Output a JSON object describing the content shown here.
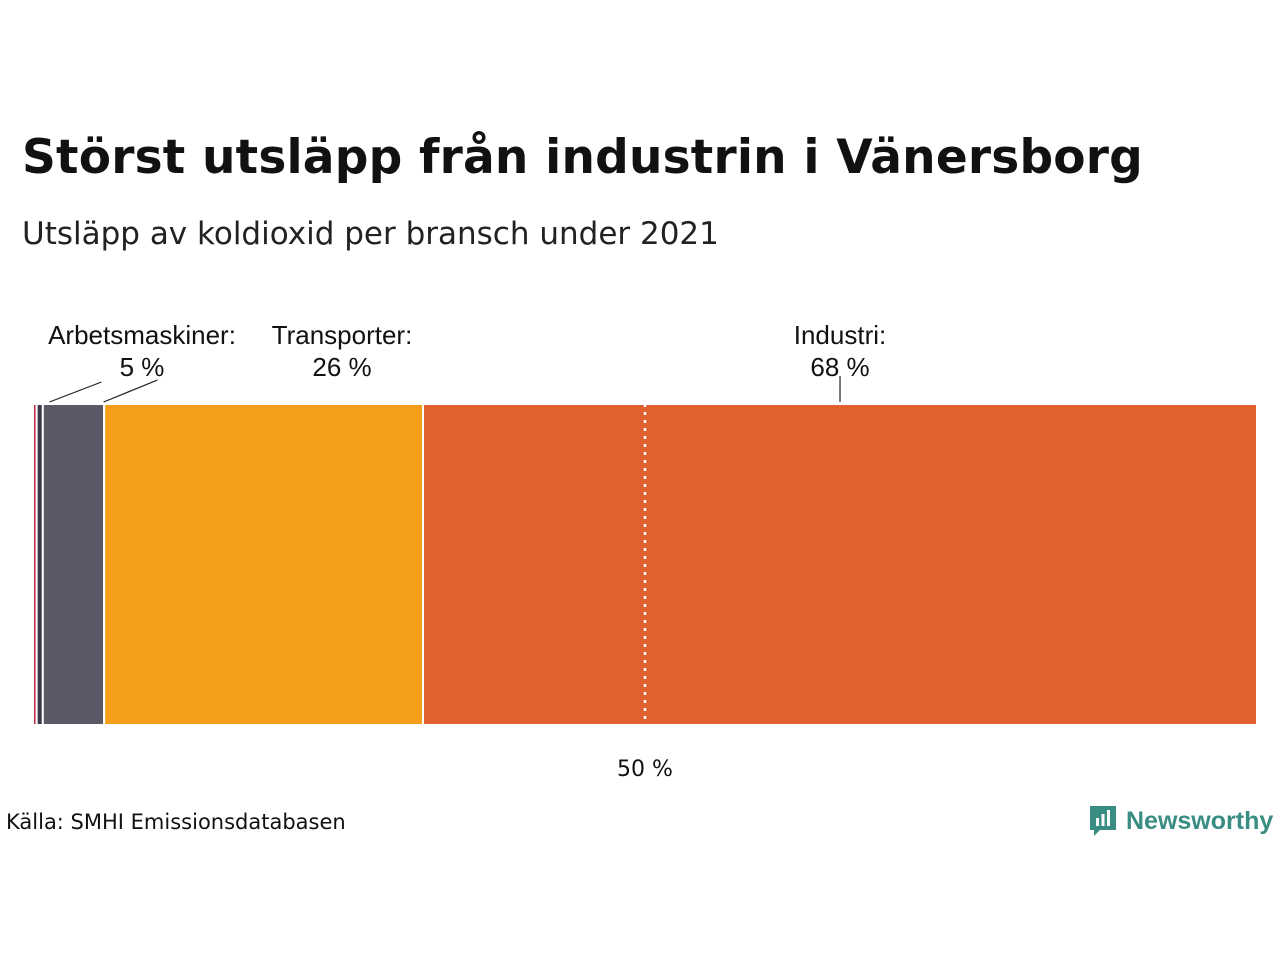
{
  "title": "Störst utsläpp från industrin i Vänersborg",
  "subtitle": "Utsläpp av koldioxid per bransch under 2021",
  "source": "Källa: SMHI Emissionsdatabasen",
  "brand": {
    "name": "Newsworthy",
    "icon": "newsworthy-logo-icon",
    "color": "#3a8d83"
  },
  "chart_data": {
    "type": "bar",
    "orientation": "horizontal-stacked-100",
    "title": "Störst utsläpp från industrin i Vänersborg",
    "subtitle": "Utsläpp av koldioxid per bransch under 2021",
    "unit": "%",
    "reference_line": {
      "value": 50,
      "label": "50 %"
    },
    "segments": [
      {
        "name": "",
        "value": 0.3,
        "color": "#c0304a",
        "label": "",
        "value_label": ""
      },
      {
        "name": "",
        "value": 0.5,
        "color": "#3a3848",
        "label": "",
        "value_label": ""
      },
      {
        "name": "Arbetsmaskiner",
        "value": 5,
        "color": "#5b5968",
        "label": "Arbetsmaskiner:",
        "value_label": "5 %"
      },
      {
        "name": "Transporter",
        "value": 26,
        "color": "#f59e1a",
        "label": "Transporter:",
        "value_label": "26 %"
      },
      {
        "name": "Industri",
        "value": 68,
        "color": "#e06030",
        "label": "Industri:",
        "value_label": "68 %"
      }
    ]
  }
}
